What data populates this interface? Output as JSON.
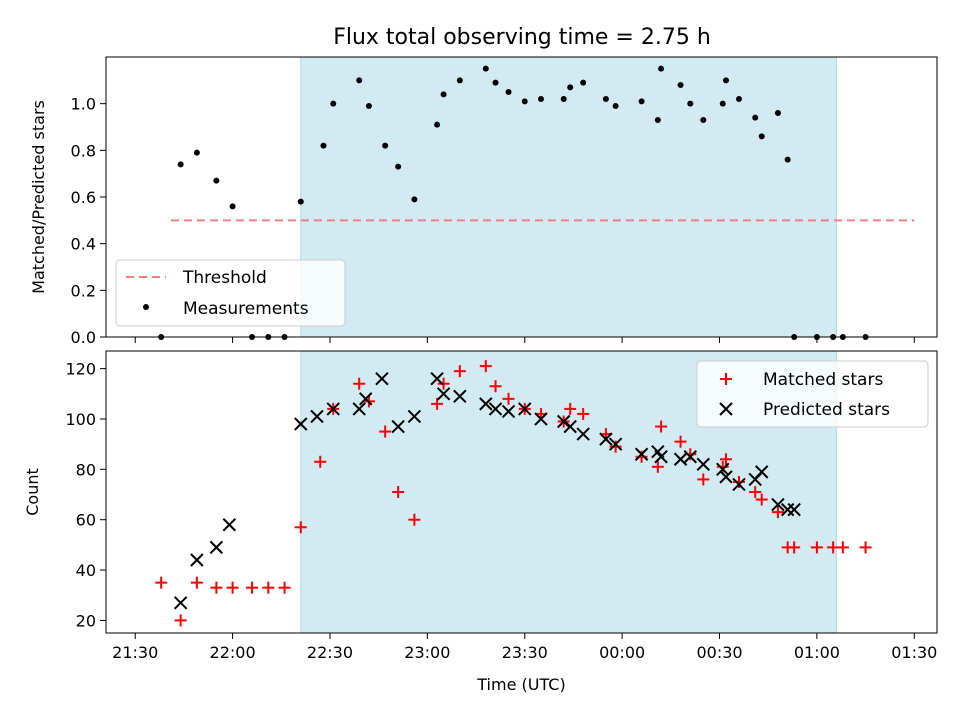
{
  "figure": {
    "title": "Flux total observing time = 2.75 h",
    "shaded_color": "#add8e6",
    "threshold_color": "#f08080",
    "marker_colors": {
      "measurements": "#000000",
      "matched": "#ff0000",
      "predicted": "#000000"
    }
  },
  "chart_data": [
    {
      "type": "scatter",
      "panel": "top",
      "title": "Flux total observing time = 2.75 h",
      "xlabel": "",
      "ylabel": "Matched/Predicted stars",
      "xlim": [
        "21:21",
        "01:37"
      ],
      "ylim": [
        0,
        1.2
      ],
      "yticks": [
        "0.0",
        "0.2",
        "0.4",
        "0.6",
        "0.8",
        "1.0"
      ],
      "grid": false,
      "legend_position": "lower-left",
      "shaded_range": [
        "22:21",
        "01:06"
      ],
      "threshold": {
        "name": "Threshold",
        "value": 0.5,
        "x_range": [
          "21:41",
          "01:30"
        ],
        "style": "dashed"
      },
      "series": [
        {
          "name": "Measurements",
          "x": [
            "21:38",
            "21:44",
            "21:49",
            "21:55",
            "22:00",
            "22:06",
            "22:11",
            "22:16",
            "22:21",
            "22:28",
            "22:31",
            "22:39",
            "22:42",
            "22:47",
            "22:51",
            "22:56",
            "23:03",
            "23:05",
            "23:10",
            "23:18",
            "23:21",
            "23:25",
            "23:30",
            "23:35",
            "23:42",
            "23:44",
            "23:48",
            "23:55",
            "23:58",
            "00:06",
            "00:11",
            "00:12",
            "00:18",
            "00:21",
            "00:25",
            "00:31",
            "00:32",
            "00:36",
            "00:41",
            "00:43",
            "00:48",
            "00:51",
            "00:53",
            "01:00",
            "01:05",
            "01:08",
            "01:15"
          ],
          "values": [
            0.0,
            0.74,
            0.79,
            0.67,
            0.56,
            0.0,
            0.0,
            0.0,
            0.58,
            0.82,
            1.0,
            1.1,
            0.99,
            0.82,
            0.73,
            0.59,
            0.91,
            1.04,
            1.1,
            1.15,
            1.09,
            1.05,
            1.01,
            1.02,
            1.02,
            1.07,
            1.09,
            1.02,
            0.99,
            1.01,
            0.93,
            1.15,
            1.08,
            1.0,
            0.93,
            1.0,
            1.1,
            1.02,
            0.94,
            0.86,
            0.96,
            0.76,
            0.0,
            0.0,
            0.0,
            0.0,
            0.0
          ]
        }
      ]
    },
    {
      "type": "scatter",
      "panel": "bottom",
      "xlabel": "Time (UTC)",
      "ylabel": "Count",
      "xlim": [
        "21:21",
        "01:37"
      ],
      "xticks": [
        "21:30",
        "22:00",
        "22:30",
        "23:00",
        "23:30",
        "00:00",
        "00:30",
        "01:00",
        "01:30"
      ],
      "ylim": [
        15,
        127
      ],
      "yticks": [
        "20",
        "40",
        "60",
        "80",
        "100",
        "120"
      ],
      "grid": false,
      "legend_position": "upper-right",
      "shaded_range": [
        "22:21",
        "01:06"
      ],
      "series": [
        {
          "name": "Matched stars",
          "marker": "+",
          "x": [
            "21:38",
            "21:44",
            "21:49",
            "21:55",
            "22:00",
            "22:06",
            "22:11",
            "22:16",
            "22:21",
            "22:27",
            "22:31",
            "22:39",
            "22:42",
            "22:47",
            "22:51",
            "22:56",
            "23:03",
            "23:05",
            "23:10",
            "23:18",
            "23:21",
            "23:25",
            "23:30",
            "23:35",
            "23:42",
            "23:44",
            "23:48",
            "23:55",
            "23:58",
            "00:06",
            "00:11",
            "00:12",
            "00:18",
            "00:21",
            "00:25",
            "00:31",
            "00:32",
            "00:36",
            "00:41",
            "00:43",
            "00:48",
            "00:51",
            "00:53",
            "01:00",
            "01:05",
            "01:08",
            "01:15"
          ],
          "values": [
            35,
            20,
            35,
            33,
            33,
            33,
            33,
            33,
            57,
            83,
            104,
            114,
            107,
            95,
            71,
            60,
            106,
            114,
            119,
            121,
            113,
            108,
            104,
            102,
            99,
            104,
            102,
            94,
            89,
            85,
            81,
            97,
            91,
            86,
            76,
            81,
            84,
            75,
            71,
            68,
            63,
            49,
            49,
            49,
            49,
            49,
            49
          ]
        },
        {
          "name": "Predicted stars",
          "marker": "x",
          "x": [
            "21:44",
            "21:49",
            "21:55",
            "21:59",
            "22:21",
            "22:26",
            "22:31",
            "22:39",
            "22:41",
            "22:46",
            "22:51",
            "22:56",
            "23:03",
            "23:05",
            "23:10",
            "23:18",
            "23:21",
            "23:25",
            "23:30",
            "23:35",
            "23:42",
            "23:44",
            "23:48",
            "23:55",
            "23:58",
            "00:06",
            "00:11",
            "00:12",
            "00:18",
            "00:21",
            "00:25",
            "00:31",
            "00:32",
            "00:36",
            "00:41",
            "00:43",
            "00:48",
            "00:51",
            "00:53"
          ],
          "values": [
            27,
            44,
            49,
            58,
            98,
            101,
            104,
            104,
            108,
            116,
            97,
            101,
            116,
            110,
            109,
            106,
            104,
            103,
            104,
            100,
            99,
            97,
            94,
            92,
            90,
            86,
            87,
            85,
            84,
            85,
            82,
            80,
            77,
            74,
            76,
            79,
            66,
            64,
            64
          ]
        }
      ]
    }
  ]
}
